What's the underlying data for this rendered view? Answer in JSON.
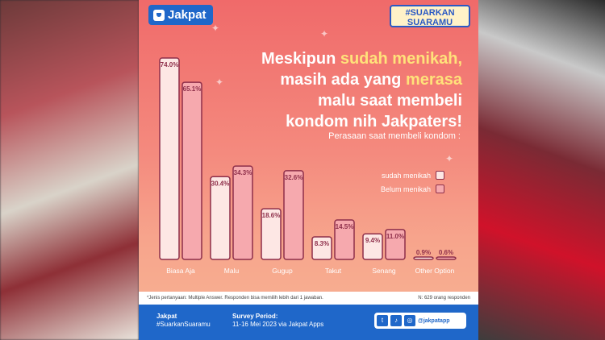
{
  "brand": {
    "name": "Jakpat",
    "campaign_line1": "#SUARKAN",
    "campaign_line2": "SUARAMU"
  },
  "headline": {
    "l1a": "Meskipun ",
    "l1b": "sudah menikah,",
    "l2a": "masih ada yang ",
    "l2b": "merasa",
    "l3": "malu saat membeli",
    "l4": "kondom nih Jakpaters!"
  },
  "colors": {
    "married_fill": "#fde7e4",
    "single_fill": "#f6a9ae",
    "bar_stroke": "#8e2f4a",
    "card_top": "#f06a6a",
    "footer": "#1f67c9"
  },
  "chart_data": {
    "type": "bar",
    "title": "Perasaan saat membeli kondom :",
    "categories": [
      "Biasa Aja",
      "Malu",
      "Gugup",
      "Takut",
      "Senang",
      "Other Option"
    ],
    "series": [
      {
        "name": "sudah menikah",
        "values": [
          74.0,
          30.4,
          18.6,
          8.3,
          9.4,
          0.9
        ],
        "labels": [
          "74.0%",
          "30.4%",
          "18.6%",
          "8.3%",
          "9.4%",
          "0.9%"
        ]
      },
      {
        "name": "Belum menikah",
        "values": [
          65.1,
          34.3,
          32.6,
          14.5,
          11.0,
          0.6
        ],
        "labels": [
          "65.1%",
          "34.3%",
          "32.6%",
          "14.5%",
          "11.0%",
          "0.6%"
        ]
      }
    ],
    "ylim": [
      0,
      74.0
    ],
    "legend_position": "right"
  },
  "note": {
    "left": "*Jenis pertanyaan: Multiple Answer. Responden bisa memilih lebih dari 1 jawaban.",
    "right": "N: 629 orang responden"
  },
  "footer": {
    "brand": "Jakpat",
    "hashtag": "#SuarkanSuaramu",
    "period_label": "Survey Period:",
    "period_value": "11-16 Mei 2023 via Jakpat Apps",
    "handle": "@jakpatapp"
  }
}
